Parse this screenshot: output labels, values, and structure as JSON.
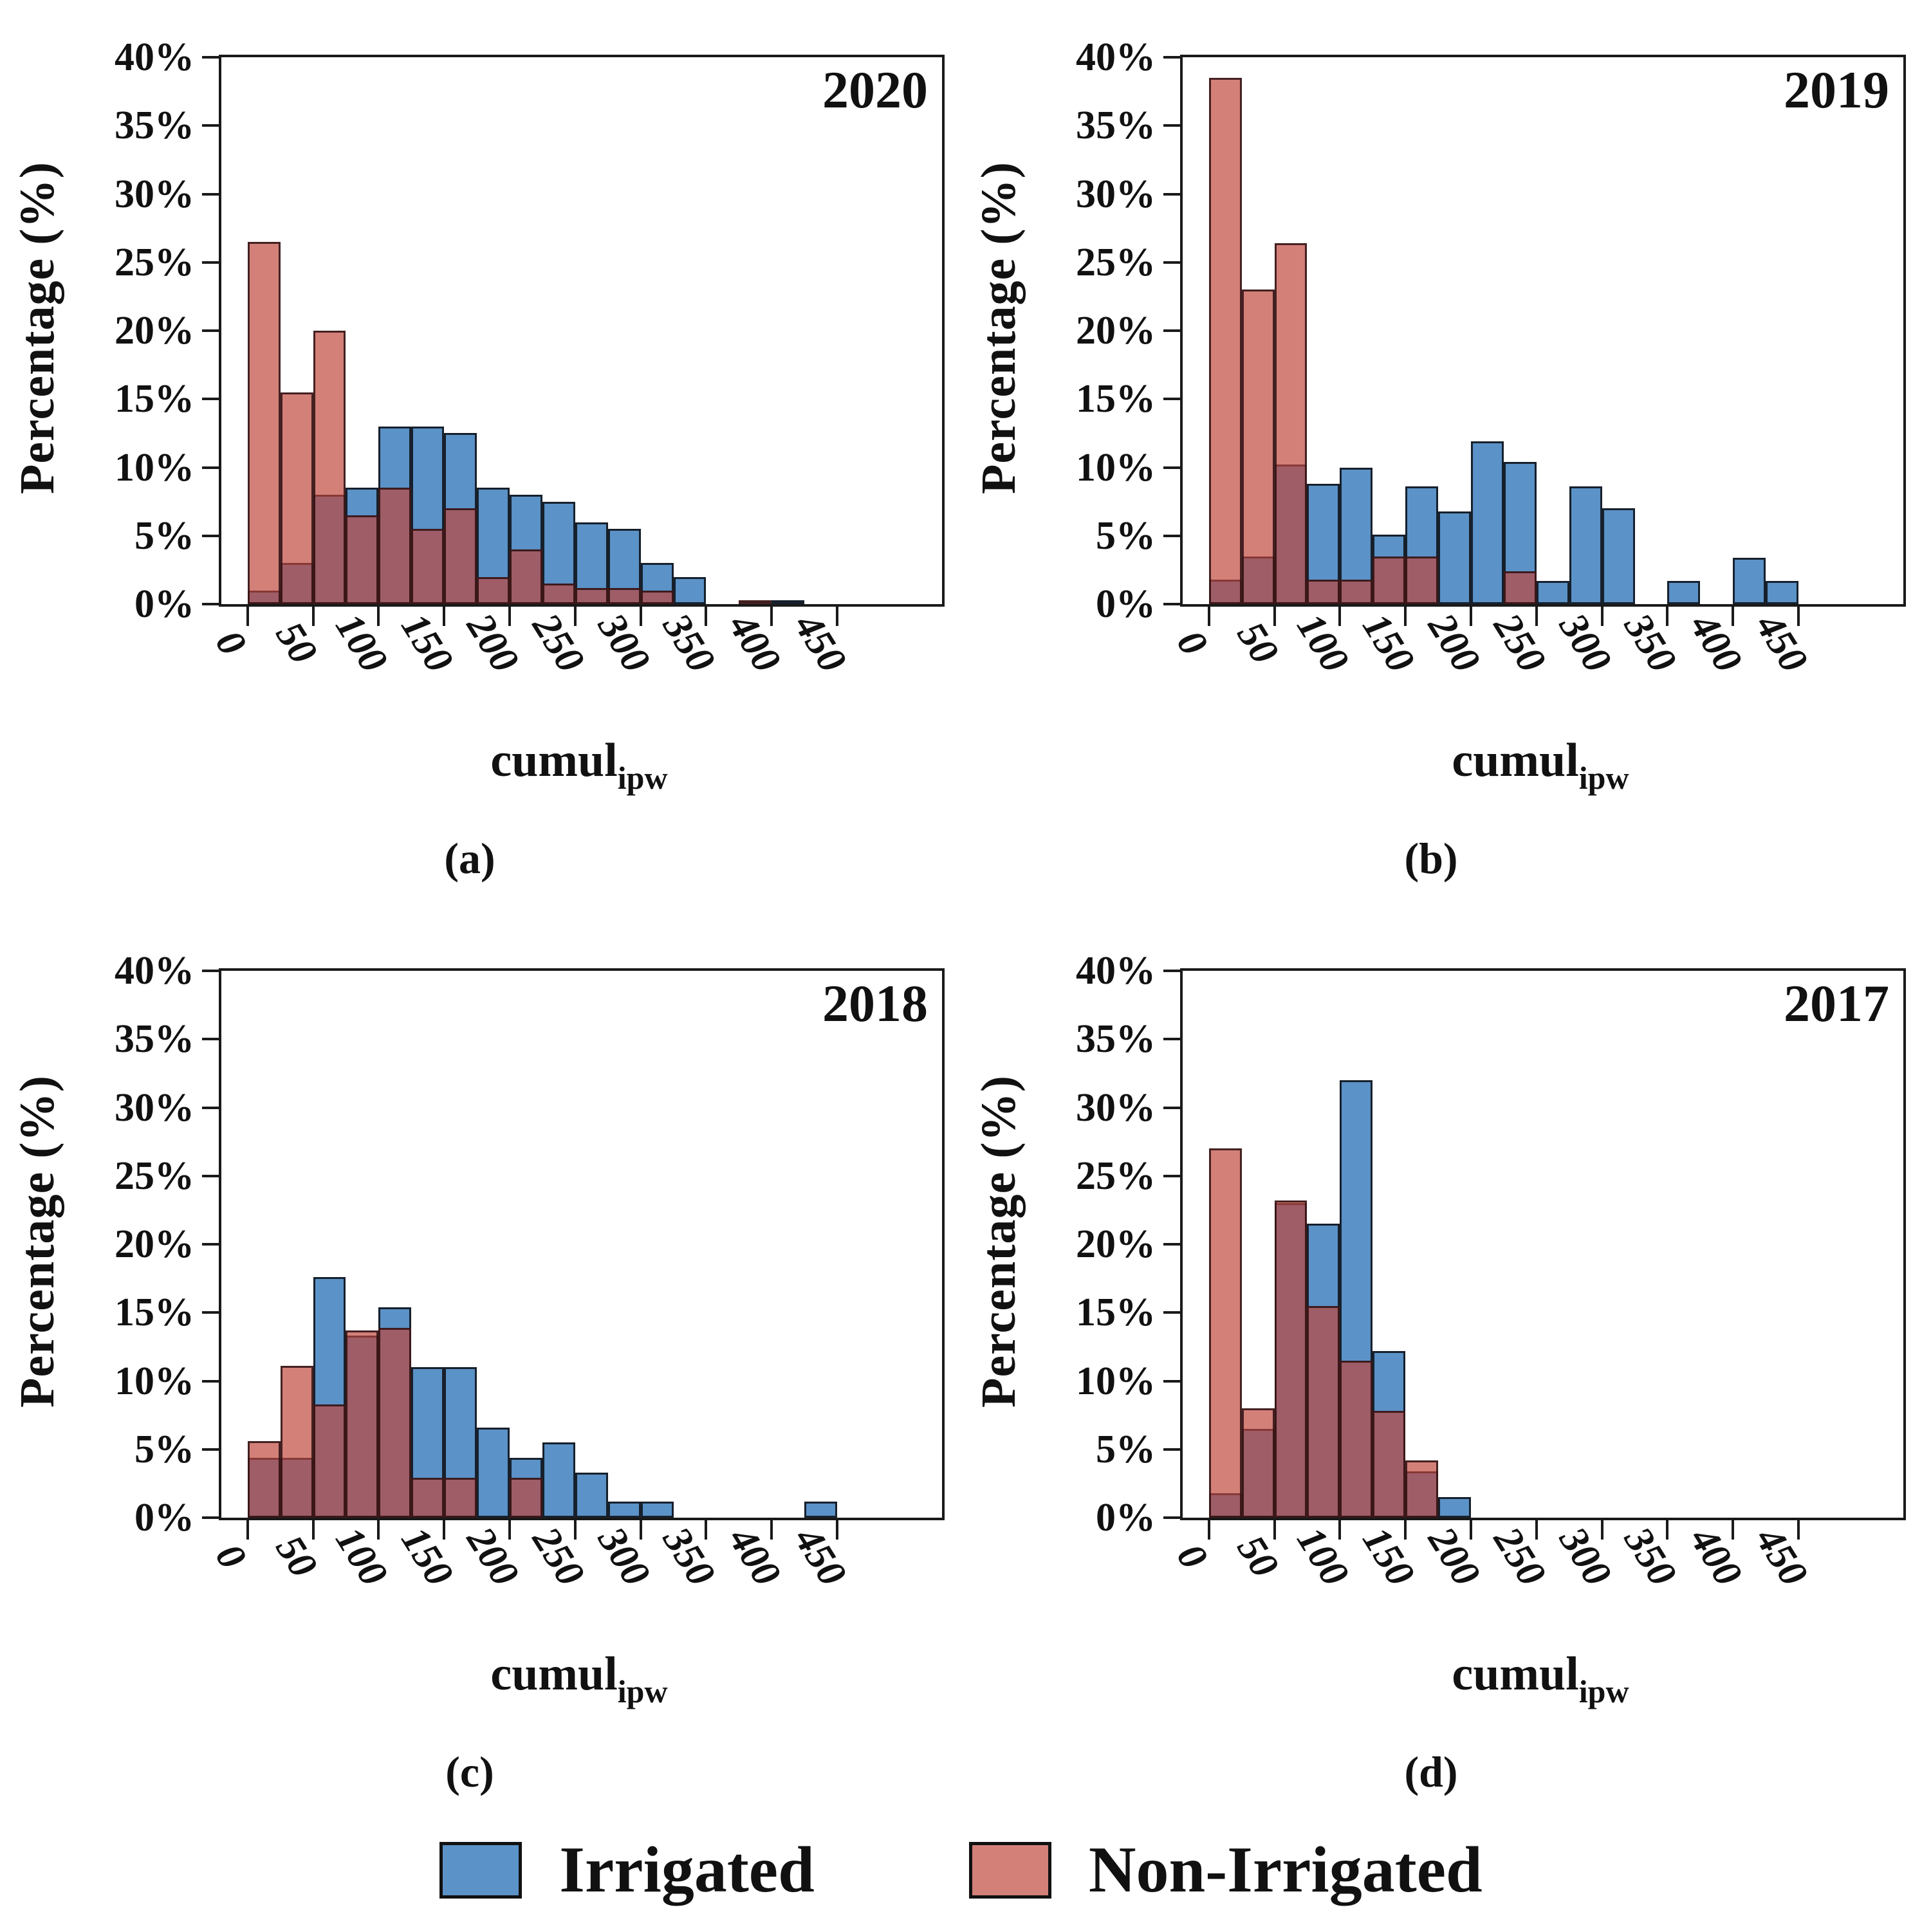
{
  "axes": {
    "ylabel": "Percentage (%)",
    "xlabel_main": "cumul",
    "xlabel_sub": "ipw",
    "ytick_values": [
      0,
      5,
      10,
      15,
      20,
      25,
      30,
      35,
      40
    ],
    "ytick_labels": [
      "0%",
      "5%",
      "10%",
      "15%",
      "20%",
      "25%",
      "30%",
      "35%",
      "40%"
    ],
    "xtick_values": [
      0,
      50,
      100,
      150,
      200,
      250,
      300,
      350,
      400,
      450
    ],
    "xtick_labels": [
      "0",
      "50",
      "100",
      "150",
      "200",
      "250",
      "300",
      "350",
      "400",
      "450"
    ],
    "ymax": 40,
    "xlim": [
      -20,
      530
    ]
  },
  "legend": {
    "items": [
      {
        "label": "Irrigated",
        "color": "#5b92c7"
      },
      {
        "label": "Non-Irrigated",
        "color": "rgba(190,68,58,0.68)"
      }
    ]
  },
  "colors": {
    "irrigated_fill": "#5b92c7",
    "irrigated_edge": "#16202c",
    "non_irrigated_fill": "rgba(190,68,58,0.68)",
    "non_irrigated_edge": "rgba(48,18,20,0.88)",
    "overlap_appearance": "#9e4e58",
    "axis": "#1a1a1a",
    "background": "#ffffff"
  },
  "chart_data": [
    {
      "type": "bar",
      "subtype": "overlaid-histogram",
      "title": "2020",
      "caption": "(a)",
      "xlabel": "cumul_ipw",
      "ylabel": "Percentage (%)",
      "ylim": [
        0,
        40
      ],
      "xlim": [
        -20,
        530
      ],
      "grid": false,
      "bin_width": 25,
      "bin_start": [
        0,
        25,
        50,
        75,
        100,
        125,
        150,
        175,
        200,
        225,
        250,
        275,
        300,
        325,
        350,
        375,
        400,
        425,
        450
      ],
      "series": [
        {
          "name": "Irrigated",
          "values": [
            1,
            3,
            8,
            8.5,
            13,
            13,
            12.5,
            8.5,
            8,
            7.5,
            6,
            5.5,
            3,
            2,
            0,
            0,
            0.25,
            0,
            0
          ]
        },
        {
          "name": "Non-Irrigated",
          "values": [
            26.5,
            15.5,
            20,
            6.5,
            8.5,
            5.5,
            7,
            2,
            4,
            1.5,
            1.2,
            1.2,
            1,
            0,
            0,
            0.3,
            0,
            0,
            0
          ]
        }
      ]
    },
    {
      "type": "bar",
      "subtype": "overlaid-histogram",
      "title": "2019",
      "caption": "(b)",
      "xlabel": "cumul_ipw",
      "ylabel": "Percentage (%)",
      "ylim": [
        0,
        40
      ],
      "xlim": [
        -20,
        530
      ],
      "grid": false,
      "bin_width": 25,
      "bin_start": [
        0,
        25,
        50,
        75,
        100,
        125,
        150,
        175,
        200,
        225,
        250,
        275,
        300,
        325,
        350,
        375,
        400,
        425,
        450
      ],
      "series": [
        {
          "name": "Irrigated",
          "values": [
            1.8,
            3.5,
            10.2,
            8.8,
            10,
            5.1,
            8.6,
            6.8,
            11.9,
            10.4,
            1.7,
            8.6,
            7,
            0,
            1.7,
            0,
            3.4,
            1.7,
            0
          ]
        },
        {
          "name": "Non-Irrigated",
          "values": [
            38.5,
            23,
            26.4,
            1.8,
            1.8,
            3.5,
            3.5,
            0,
            0,
            2.4,
            0,
            0,
            0,
            0,
            0,
            0,
            0,
            0,
            0
          ]
        }
      ]
    },
    {
      "type": "bar",
      "subtype": "overlaid-histogram",
      "title": "2018",
      "caption": "(c)",
      "xlabel": "cumul_ipw",
      "ylabel": "Percentage (%)",
      "ylim": [
        0,
        40
      ],
      "xlim": [
        -20,
        530
      ],
      "grid": false,
      "bin_width": 25,
      "bin_start": [
        0,
        25,
        50,
        75,
        100,
        125,
        150,
        175,
        200,
        225,
        250,
        275,
        300,
        325,
        350,
        375,
        400,
        425,
        450
      ],
      "series": [
        {
          "name": "Irrigated",
          "values": [
            4.4,
            4.4,
            17.6,
            13.3,
            15.4,
            11,
            11,
            6.6,
            4.4,
            5.5,
            3.3,
            1.2,
            1.2,
            0,
            0,
            0,
            0,
            1.2,
            0
          ]
        },
        {
          "name": "Non-Irrigated",
          "values": [
            5.6,
            11.1,
            8.3,
            13.7,
            13.9,
            2.9,
            2.9,
            0,
            2.9,
            0,
            0,
            0,
            0,
            0,
            0,
            0,
            0,
            0,
            0
          ]
        }
      ]
    },
    {
      "type": "bar",
      "subtype": "overlaid-histogram",
      "title": "2017",
      "caption": "(d)",
      "xlabel": "cumul_ipw",
      "ylabel": "Percentage (%)",
      "ylim": [
        0,
        40
      ],
      "xlim": [
        -20,
        530
      ],
      "grid": false,
      "bin_width": 25,
      "bin_start": [
        0,
        25,
        50,
        75,
        100,
        125,
        150,
        175,
        200,
        225,
        250,
        275,
        300,
        325,
        350,
        375,
        400,
        425,
        450
      ],
      "series": [
        {
          "name": "Irrigated",
          "values": [
            1.8,
            6.5,
            23,
            21.5,
            32,
            12.2,
            3.4,
            1.5,
            0,
            0,
            0,
            0,
            0,
            0,
            0,
            0,
            0,
            0,
            0
          ]
        },
        {
          "name": "Non-Irrigated",
          "values": [
            27,
            8,
            23.2,
            15.5,
            11.5,
            7.8,
            4.2,
            0,
            0,
            0,
            0,
            0,
            0,
            0,
            0,
            0,
            0,
            0,
            0
          ]
        }
      ]
    }
  ]
}
